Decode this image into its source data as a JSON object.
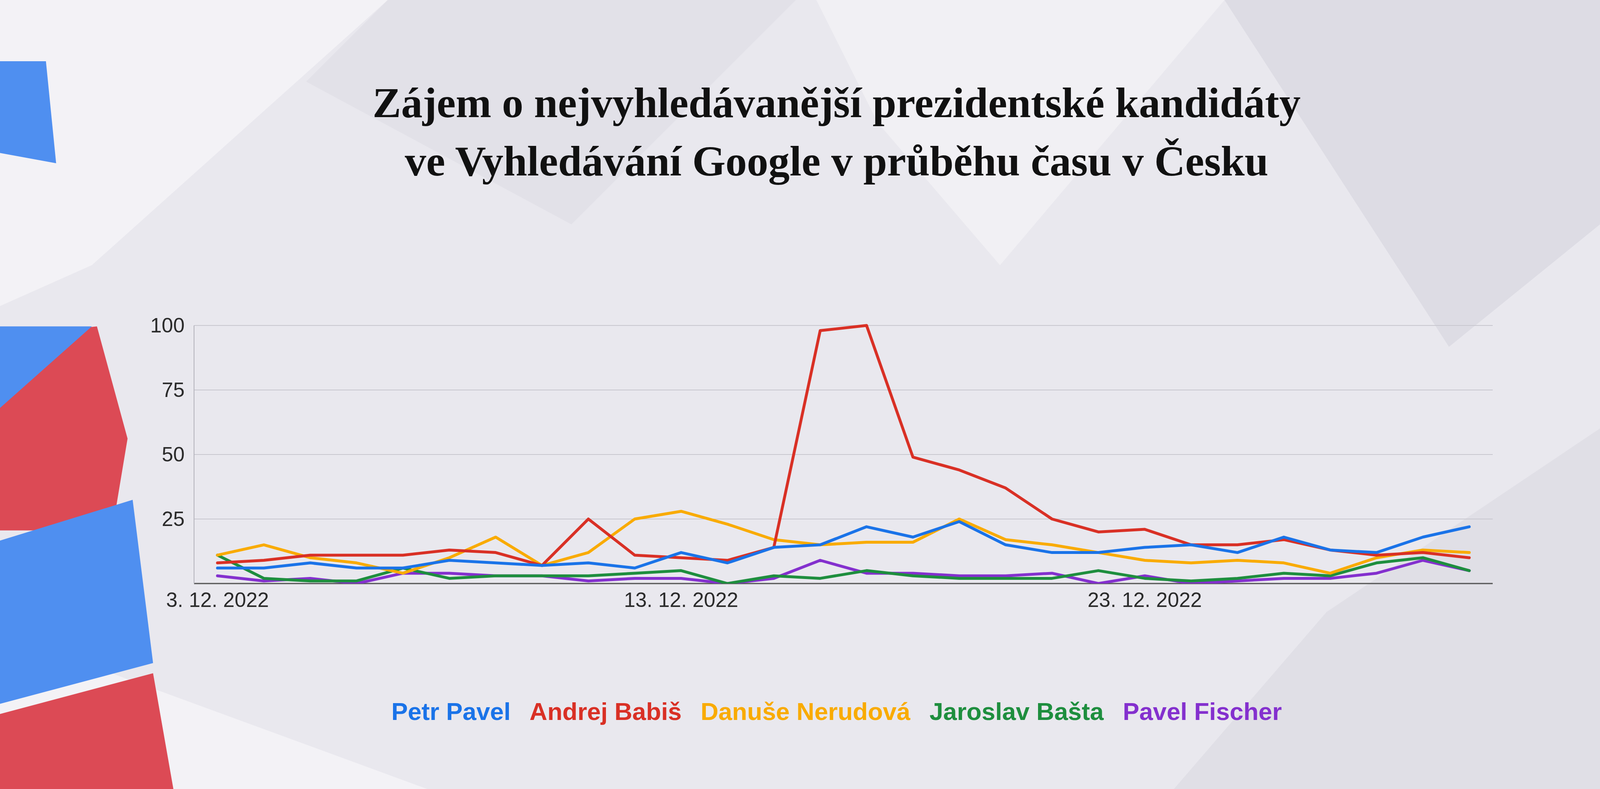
{
  "chart_data": {
    "type": "line",
    "title": "Zájem o nejvyhledávanější prezidentské kandidáty ve Vyhledávání Google v průběhu času v Česku",
    "categories": [
      "3. 12. 2022",
      null,
      null,
      null,
      null,
      null,
      null,
      null,
      null,
      null,
      "13. 12. 2022",
      null,
      null,
      null,
      null,
      null,
      null,
      null,
      null,
      null,
      "23. 12. 2022",
      null,
      null,
      null,
      null,
      null,
      null,
      null
    ],
    "series": [
      {
        "name": "Petr Pavel",
        "color": "#1a73e8",
        "values": [
          6,
          6,
          8,
          6,
          6,
          9,
          8,
          7,
          8,
          6,
          12,
          8,
          14,
          15,
          22,
          18,
          24,
          15,
          12,
          12,
          14,
          15,
          12,
          18,
          13,
          12,
          18,
          22
        ]
      },
      {
        "name": "Andrej Babiš",
        "color": "#d93025",
        "values": [
          8,
          9,
          11,
          11,
          11,
          13,
          12,
          7,
          25,
          11,
          10,
          9,
          14,
          98,
          100,
          49,
          44,
          37,
          25,
          20,
          21,
          15,
          15,
          17,
          13,
          11,
          12,
          10
        ]
      },
      {
        "name": "Danuše Nerudová",
        "color": "#f9ab00",
        "values": [
          11,
          15,
          10,
          8,
          4,
          10,
          18,
          7,
          12,
          25,
          28,
          23,
          17,
          15,
          16,
          16,
          25,
          17,
          15,
          12,
          9,
          8,
          9,
          8,
          4,
          10,
          13,
          12
        ]
      },
      {
        "name": "Jaroslav Bašta",
        "color": "#1e8e3e",
        "values": [
          11,
          2,
          1,
          1,
          6,
          2,
          3,
          3,
          3,
          4,
          5,
          0,
          3,
          2,
          5,
          3,
          2,
          2,
          2,
          5,
          2,
          1,
          2,
          4,
          3,
          8,
          10,
          5
        ]
      },
      {
        "name": "Pavel Fischer",
        "color": "#8430ce",
        "values": [
          3,
          1,
          2,
          0,
          4,
          4,
          3,
          3,
          1,
          2,
          2,
          0,
          2,
          9,
          4,
          4,
          3,
          3,
          4,
          0,
          3,
          0,
          1,
          2,
          2,
          4,
          9,
          5
        ]
      }
    ],
    "ylim": [
      0,
      100
    ],
    "yticks": [
      25,
      50,
      75,
      100
    ],
    "grid": true,
    "legend": "bottom"
  }
}
